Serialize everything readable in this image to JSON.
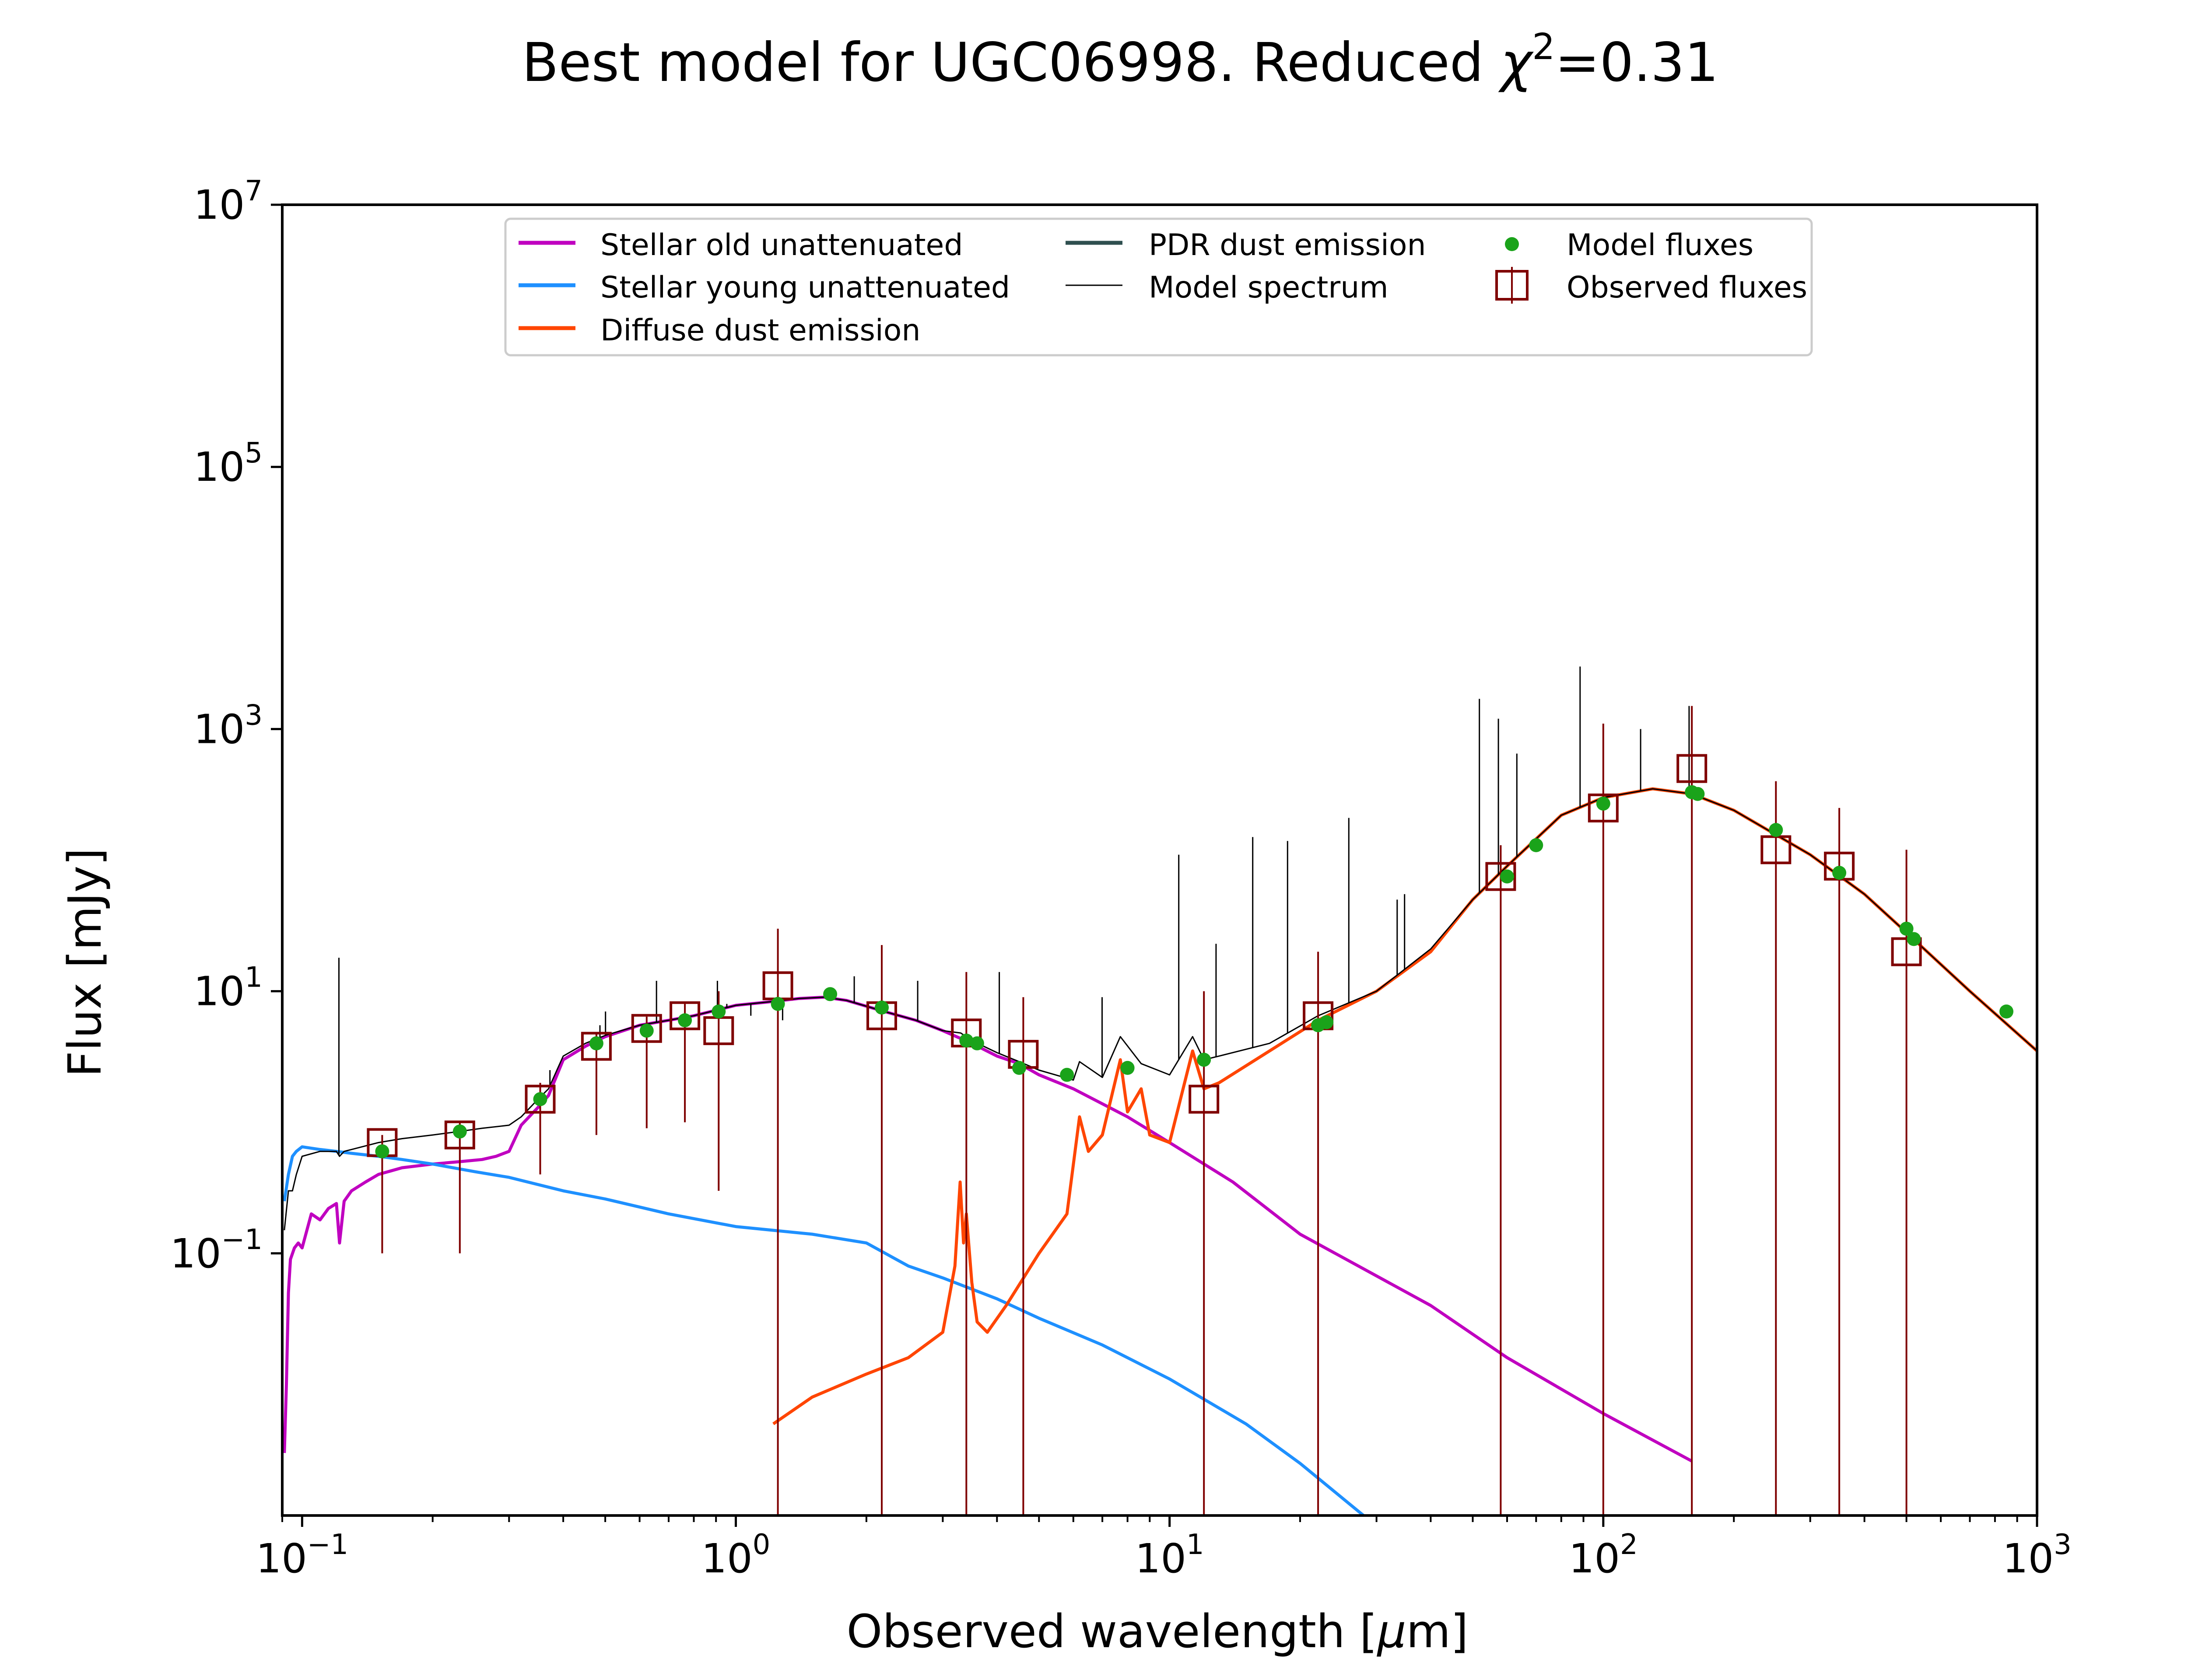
{
  "chart_data": {
    "type": "line",
    "title": "Best model for UGC06998. Reduced χ²=0.31",
    "title_parts": {
      "prefix": "Best model for UGC06998. Reduced ",
      "chi": "χ",
      "superscript": "2",
      "suffix": "=0.31"
    },
    "xlabel": "Observed wavelength [μm]",
    "xlabel_parts": {
      "prefix": "Observed wavelength [",
      "mu": "μ",
      "suffix": "m]"
    },
    "ylabel": "Flux [mJy]",
    "x_scale": "log",
    "y_scale": "log",
    "xlim": [
      0.09,
      1000
    ],
    "ylim": [
      0.001,
      10000000
    ],
    "x_ticks": [
      {
        "value": 0.1,
        "base": "10",
        "exp": "−1"
      },
      {
        "value": 1,
        "base": "10",
        "exp": "0"
      },
      {
        "value": 10,
        "base": "10",
        "exp": "1"
      },
      {
        "value": 100,
        "base": "10",
        "exp": "2"
      },
      {
        "value": 1000,
        "base": "10",
        "exp": "3"
      }
    ],
    "y_ticks": [
      {
        "value": 0.1,
        "base": "10",
        "exp": "−1"
      },
      {
        "value": 10,
        "base": "10",
        "exp": "1"
      },
      {
        "value": 1000,
        "base": "10",
        "exp": "3"
      },
      {
        "value": 100000,
        "base": "10",
        "exp": "5"
      },
      {
        "value": 10000000,
        "base": "10",
        "exp": "7"
      }
    ],
    "grid": false,
    "legend_position": "top-center",
    "legend": [
      {
        "label": "Stellar old unattenuated",
        "kind": "line",
        "color": "#c000c0"
      },
      {
        "label": "Stellar young unattenuated",
        "kind": "line",
        "color": "#1e90ff"
      },
      {
        "label": "Diffuse dust emission",
        "kind": "line",
        "color": "#ff4500"
      },
      {
        "label": "PDR dust emission",
        "kind": "line",
        "color": "#2f4f4f"
      },
      {
        "label": "Model spectrum",
        "kind": "line",
        "color": "#000000"
      },
      {
        "label": "Model fluxes",
        "kind": "dot",
        "color": "#1aa31a"
      },
      {
        "label": "Observed fluxes",
        "kind": "square",
        "color": "#7f0000"
      }
    ],
    "series": [
      {
        "name": "Stellar old unattenuated",
        "color": "#c000c0",
        "x": [
          0.091,
          0.092,
          0.093,
          0.094,
          0.096,
          0.098,
          0.1,
          0.105,
          0.11,
          0.115,
          0.12,
          0.122,
          0.125,
          0.13,
          0.14,
          0.15,
          0.17,
          0.2,
          0.23,
          0.26,
          0.28,
          0.3,
          0.32,
          0.35,
          0.37,
          0.4,
          0.45,
          0.5,
          0.6,
          0.7,
          0.8,
          1.0,
          1.2,
          1.4,
          1.6,
          1.8,
          2.2,
          2.6,
          3.0,
          3.5,
          4.0,
          4.5,
          5.0,
          6.0,
          8.0,
          10,
          14,
          20,
          40,
          60,
          100,
          160
        ],
        "y": [
          0.003,
          0.01,
          0.05,
          0.09,
          0.11,
          0.12,
          0.11,
          0.2,
          0.18,
          0.22,
          0.24,
          0.12,
          0.25,
          0.3,
          0.35,
          0.4,
          0.45,
          0.48,
          0.5,
          0.52,
          0.55,
          0.6,
          0.95,
          1.3,
          1.6,
          3.0,
          3.8,
          4.5,
          5.5,
          6.0,
          6.5,
          7.8,
          8.3,
          8.8,
          9.0,
          8.5,
          7.0,
          6.0,
          5.0,
          4.0,
          3.2,
          2.8,
          2.3,
          1.8,
          1.1,
          0.7,
          0.35,
          0.14,
          0.04,
          0.016,
          0.006,
          0.0026
        ]
      },
      {
        "name": "Stellar young unattenuated",
        "color": "#1e90ff",
        "x": [
          0.091,
          0.093,
          0.095,
          0.097,
          0.1,
          0.11,
          0.12,
          0.13,
          0.15,
          0.17,
          0.2,
          0.25,
          0.3,
          0.4,
          0.5,
          0.7,
          1.0,
          1.5,
          2.0,
          2.5,
          3.0,
          4.0,
          5.0,
          7.0,
          10,
          15,
          20,
          28
        ],
        "y": [
          0.25,
          0.4,
          0.55,
          0.6,
          0.65,
          0.62,
          0.6,
          0.58,
          0.55,
          0.52,
          0.48,
          0.42,
          0.38,
          0.3,
          0.26,
          0.2,
          0.16,
          0.14,
          0.12,
          0.08,
          0.065,
          0.045,
          0.032,
          0.02,
          0.011,
          0.005,
          0.0025,
          0.001
        ]
      },
      {
        "name": "Diffuse dust emission",
        "color": "#ff4500",
        "x": [
          1.22,
          1.5,
          2.0,
          2.5,
          3.0,
          3.2,
          3.29,
          3.35,
          3.4,
          3.5,
          3.6,
          3.8,
          4.2,
          5.0,
          5.8,
          6.2,
          6.5,
          7.0,
          7.7,
          8.0,
          8.6,
          9.0,
          10.0,
          11.3,
          12.0,
          13.0,
          17,
          22,
          30,
          40,
          50,
          60,
          80,
          100,
          130,
          160,
          200,
          300,
          400,
          500,
          700,
          1000
        ],
        "y": [
          0.005,
          0.008,
          0.012,
          0.016,
          0.025,
          0.08,
          0.35,
          0.12,
          0.2,
          0.06,
          0.03,
          0.025,
          0.04,
          0.1,
          0.2,
          1.1,
          0.6,
          0.8,
          3.0,
          1.2,
          1.8,
          0.8,
          0.7,
          3.5,
          1.8,
          2.0,
          3.5,
          6.0,
          10,
          20,
          50,
          90,
          220,
          300,
          350,
          320,
          240,
          110,
          55,
          28,
          10,
          3.5
        ]
      },
      {
        "name": "Model spectrum",
        "color": "#000000",
        "x": [
          0.091,
          0.093,
          0.095,
          0.097,
          0.1,
          0.11,
          0.12,
          0.122,
          0.125,
          0.13,
          0.15,
          0.17,
          0.2,
          0.23,
          0.26,
          0.3,
          0.32,
          0.35,
          0.37,
          0.4,
          0.45,
          0.5,
          0.6,
          0.7,
          0.8,
          1.0,
          1.2,
          1.4,
          1.6,
          1.8,
          2.2,
          2.6,
          3.0,
          3.3,
          3.5,
          4.0,
          4.5,
          5.0,
          6.0,
          6.2,
          7.0,
          7.7,
          8.6,
          10,
          11.3,
          12,
          13,
          17,
          22,
          30,
          40,
          50,
          60,
          80,
          100,
          130,
          160,
          200,
          300,
          400,
          500,
          700,
          1000
        ],
        "y": [
          0.15,
          0.3,
          0.3,
          0.4,
          0.55,
          0.6,
          0.6,
          0.55,
          0.6,
          0.62,
          0.7,
          0.75,
          0.8,
          0.85,
          0.9,
          0.95,
          1.1,
          1.5,
          1.8,
          3.2,
          4.0,
          4.6,
          5.5,
          6.0,
          6.5,
          7.8,
          8.3,
          8.8,
          9.0,
          8.5,
          7.0,
          6.0,
          5.0,
          4.8,
          4.2,
          3.4,
          2.9,
          2.5,
          2.1,
          2.9,
          2.2,
          4.5,
          2.8,
          2.3,
          4.5,
          3.0,
          3.2,
          4.0,
          6.5,
          10,
          21,
          50,
          90,
          220,
          300,
          350,
          320,
          240,
          110,
          55,
          28,
          10,
          3.5
        ]
      }
    ],
    "emission_lines": {
      "name": "Model spectrum emission lines",
      "x": [
        0.1216,
        0.3727,
        0.4861,
        0.5007,
        0.6563,
        0.9069,
        0.9532,
        1.083,
        1.282,
        1.875,
        2.626,
        4.05,
        6.99,
        10.5,
        12.8,
        15.55,
        18.71,
        25.9,
        33.48,
        34.82,
        51.8,
        57.3,
        63.2,
        88.4,
        121.9,
        157.7
      ],
      "y": [
        18,
        2.5,
        5.5,
        7.0,
        12,
        12,
        8.0,
        6.5,
        6.0,
        13,
        12,
        14,
        9.0,
        110,
        23,
        150,
        140,
        210,
        50,
        55,
        1700,
        1200,
        650,
        3000,
        1000,
        1500
      ]
    },
    "model_fluxes": {
      "name": "Model fluxes",
      "x": [
        0.153,
        0.231,
        0.354,
        0.477,
        0.623,
        0.763,
        0.913,
        1.25,
        1.65,
        2.17,
        3.4,
        3.6,
        4.5,
        5.8,
        8.0,
        12.0,
        22.0,
        23.0,
        60.0,
        70.0,
        100.0,
        160.0,
        165.0,
        250.0,
        350.0,
        500.0,
        520.0,
        850.0
      ],
      "y": [
        0.6,
        0.85,
        1.5,
        4.0,
        5.0,
        6.0,
        7.0,
        8.0,
        9.5,
        7.5,
        4.2,
        4.0,
        2.6,
        2.3,
        2.6,
        3.0,
        5.5,
        5.8,
        75,
        130,
        270,
        330,
        320,
        170,
        80,
        30,
        25,
        7.0
      ]
    },
    "observed_fluxes": {
      "name": "Observed fluxes",
      "x": [
        0.153,
        0.231,
        0.354,
        0.477,
        0.623,
        0.763,
        0.913,
        1.25,
        2.17,
        3.4,
        4.6,
        12.0,
        22.0,
        58.0,
        100.0,
        160.0,
        250.0,
        350.0,
        500.0
      ],
      "y": [
        0.7,
        0.8,
        1.5,
        3.8,
        5.2,
        6.5,
        5.0,
        11,
        6.5,
        4.8,
        3.3,
        1.5,
        6.5,
        75,
        250,
        500,
        120,
        90,
        20
      ],
      "yerr_low": [
        0.6,
        0.7,
        1.1,
        3.0,
        4.3,
        5.5,
        4.7,
        10.999,
        6.499,
        4.799,
        3.299,
        1.499,
        6.499,
        74.999,
        249.999,
        499.999,
        119.999,
        89.999,
        19.999
      ],
      "yerr_high": [
        0.1,
        0.2,
        0.5,
        1.0,
        1.2,
        1.5,
        5.0,
        19,
        16,
        9.2,
        5.7,
        8.5,
        13.5,
        55,
        850,
        1000,
        280,
        160,
        100
      ]
    }
  }
}
